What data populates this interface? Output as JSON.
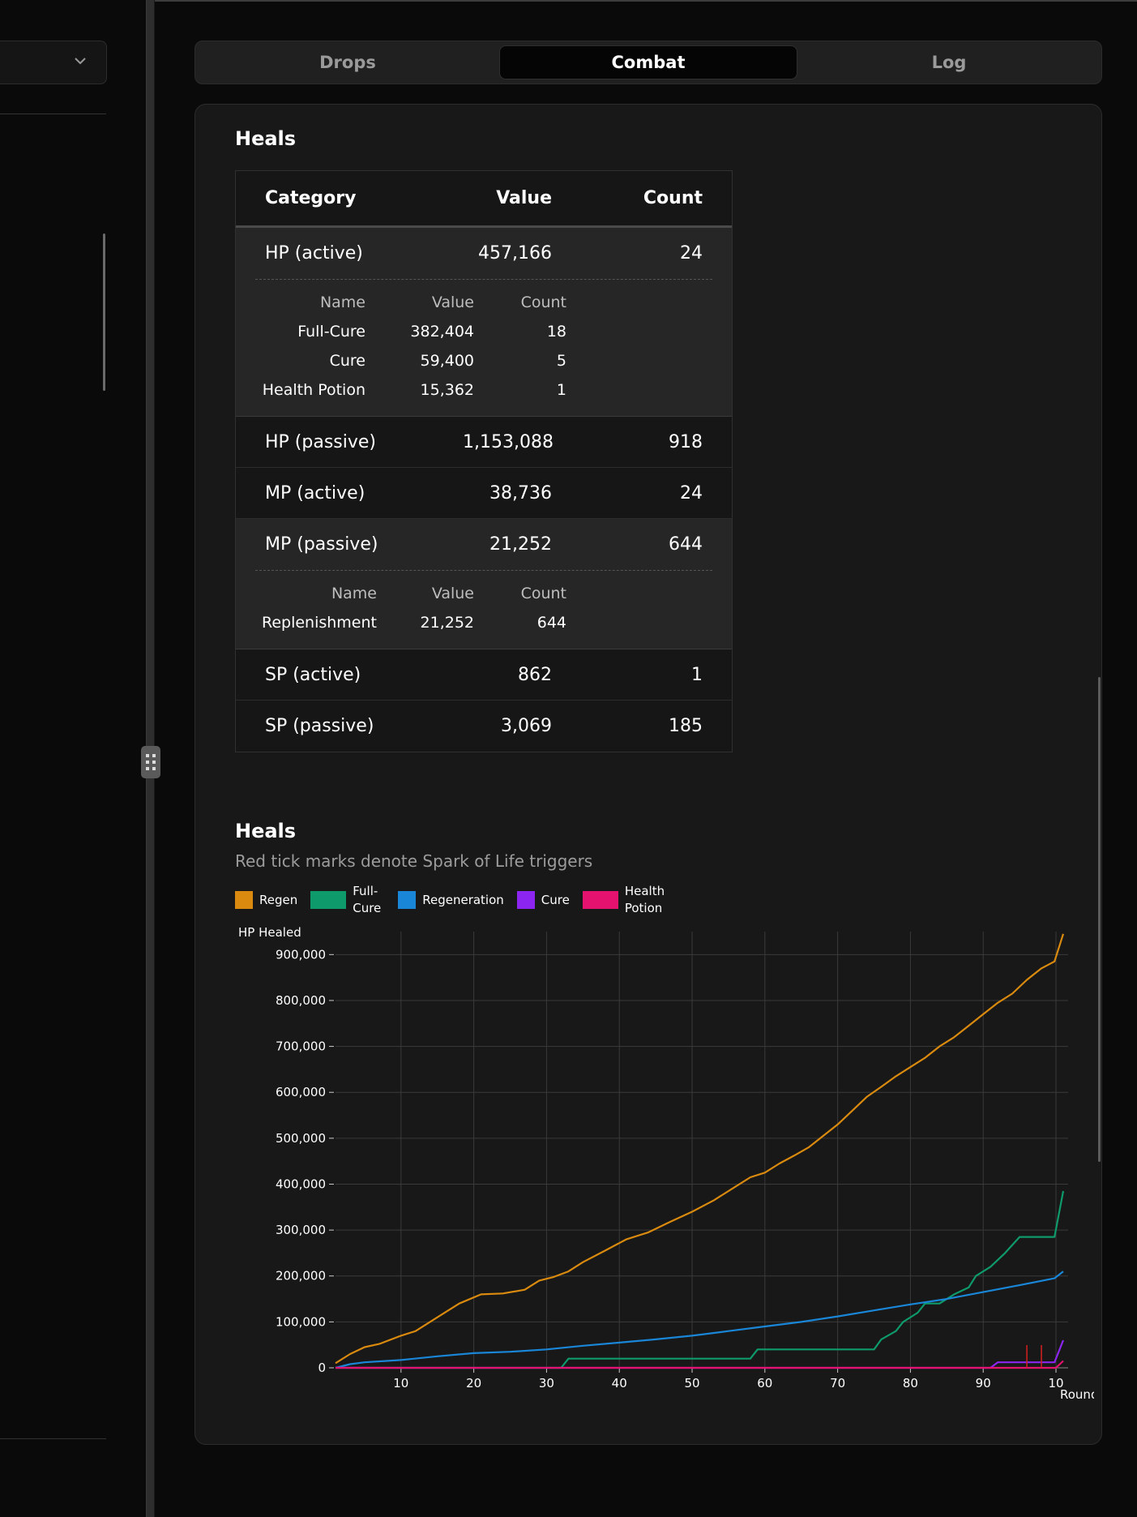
{
  "tabs": [
    {
      "label": "Drops"
    },
    {
      "label": "Combat"
    },
    {
      "label": "Log"
    }
  ],
  "active_tab": "Combat",
  "heals_table": {
    "title": "Heals",
    "columns": [
      "Category",
      "Value",
      "Count"
    ],
    "rows": [
      {
        "category": "HP (active)",
        "value": "457,166",
        "count": "24",
        "sub_columns": [
          "Name",
          "Value",
          "Count"
        ],
        "sub": [
          {
            "name": "Full-Cure",
            "value": "382,404",
            "count": "18"
          },
          {
            "name": "Cure",
            "value": "59,400",
            "count": "5"
          },
          {
            "name": "Health Potion",
            "value": "15,362",
            "count": "1"
          }
        ]
      },
      {
        "category": "HP (passive)",
        "value": "1,153,088",
        "count": "918"
      },
      {
        "category": "MP (active)",
        "value": "38,736",
        "count": "24"
      },
      {
        "category": "MP (passive)",
        "value": "21,252",
        "count": "644",
        "sub_columns": [
          "Name",
          "Value",
          "Count"
        ],
        "sub": [
          {
            "name": "Replenishment",
            "value": "21,252",
            "count": "644"
          }
        ]
      },
      {
        "category": "SP (active)",
        "value": "862",
        "count": "1"
      },
      {
        "category": "SP (passive)",
        "value": "3,069",
        "count": "185"
      }
    ]
  },
  "heals_chart": {
    "title": "Heals",
    "subtitle": "Red tick marks denote Spark of Life triggers"
  },
  "chart_data": {
    "type": "line",
    "title": "Heals",
    "subtitle": "Red tick marks denote Spark of Life triggers",
    "xlabel": "Round",
    "ylabel": "HP Healed",
    "xlim": [
      1,
      101
    ],
    "ylim": [
      0,
      950000
    ],
    "x_ticks": [
      "10",
      "20",
      "30",
      "40",
      "50",
      "60",
      "70",
      "80",
      "90",
      "10"
    ],
    "y_ticks": [
      "0",
      "100,000",
      "200,000",
      "300,000",
      "400,000",
      "500,000",
      "600,000",
      "700,000",
      "800,000",
      "900,000"
    ],
    "grid": true,
    "legend_position": "top-left",
    "series": [
      {
        "name": "Regen",
        "color": "#d98a0f",
        "points": [
          [
            1,
            10000
          ],
          [
            3,
            30000
          ],
          [
            5,
            45000
          ],
          [
            7,
            52000
          ],
          [
            10,
            70000
          ],
          [
            12,
            80000
          ],
          [
            15,
            110000
          ],
          [
            18,
            140000
          ],
          [
            21,
            160000
          ],
          [
            24,
            162000
          ],
          [
            27,
            170000
          ],
          [
            29,
            190000
          ],
          [
            31,
            198000
          ],
          [
            33,
            210000
          ],
          [
            35,
            230000
          ],
          [
            38,
            255000
          ],
          [
            41,
            280000
          ],
          [
            44,
            295000
          ],
          [
            47,
            318000
          ],
          [
            50,
            340000
          ],
          [
            53,
            365000
          ],
          [
            56,
            395000
          ],
          [
            58,
            415000
          ],
          [
            60,
            425000
          ],
          [
            62,
            445000
          ],
          [
            64,
            462000
          ],
          [
            66,
            480000
          ],
          [
            68,
            505000
          ],
          [
            70,
            530000
          ],
          [
            72,
            560000
          ],
          [
            74,
            590000
          ],
          [
            76,
            612000
          ],
          [
            78,
            635000
          ],
          [
            80,
            655000
          ],
          [
            82,
            675000
          ],
          [
            84,
            700000
          ],
          [
            86,
            720000
          ],
          [
            88,
            745000
          ],
          [
            90,
            770000
          ],
          [
            92,
            795000
          ],
          [
            94,
            815000
          ],
          [
            96,
            845000
          ],
          [
            98,
            870000
          ],
          [
            99.8,
            885000
          ],
          [
            101,
            945000
          ]
        ]
      },
      {
        "name": "Full-Cure",
        "color": "#0e9a6a",
        "points": [
          [
            1,
            0
          ],
          [
            32,
            0
          ],
          [
            33,
            20000
          ],
          [
            58,
            20000
          ],
          [
            59,
            40000
          ],
          [
            75,
            40000
          ],
          [
            76,
            62000
          ],
          [
            78,
            80000
          ],
          [
            79,
            100000
          ],
          [
            81,
            120000
          ],
          [
            82,
            140000
          ],
          [
            84,
            140000
          ],
          [
            86,
            160000
          ],
          [
            88,
            175000
          ],
          [
            89,
            200000
          ],
          [
            91,
            220000
          ],
          [
            93,
            250000
          ],
          [
            95,
            285000
          ],
          [
            99.8,
            285000
          ],
          [
            101,
            385000
          ]
        ]
      },
      {
        "name": "Regeneration",
        "color": "#1a86d8",
        "points": [
          [
            1,
            0
          ],
          [
            3,
            8000
          ],
          [
            5,
            12000
          ],
          [
            10,
            17000
          ],
          [
            15,
            25000
          ],
          [
            20,
            32000
          ],
          [
            25,
            35000
          ],
          [
            30,
            40000
          ],
          [
            35,
            48000
          ],
          [
            40,
            55000
          ],
          [
            45,
            62000
          ],
          [
            50,
            70000
          ],
          [
            55,
            80000
          ],
          [
            60,
            90000
          ],
          [
            65,
            100000
          ],
          [
            70,
            112000
          ],
          [
            75,
            125000
          ],
          [
            80,
            138000
          ],
          [
            85,
            150000
          ],
          [
            90,
            165000
          ],
          [
            95,
            180000
          ],
          [
            99.8,
            195000
          ],
          [
            101,
            210000
          ]
        ]
      },
      {
        "name": "Cure",
        "color": "#8b25ef",
        "points": [
          [
            1,
            0
          ],
          [
            91,
            0
          ],
          [
            92,
            12000
          ],
          [
            99.8,
            12000
          ],
          [
            101,
            60000
          ]
        ]
      },
      {
        "name": "Health Potion",
        "color": "#e5126f",
        "points": [
          [
            1,
            0
          ],
          [
            100,
            0
          ],
          [
            101,
            15000
          ]
        ]
      }
    ],
    "spark_of_life_ticks": [
      96,
      98
    ]
  }
}
